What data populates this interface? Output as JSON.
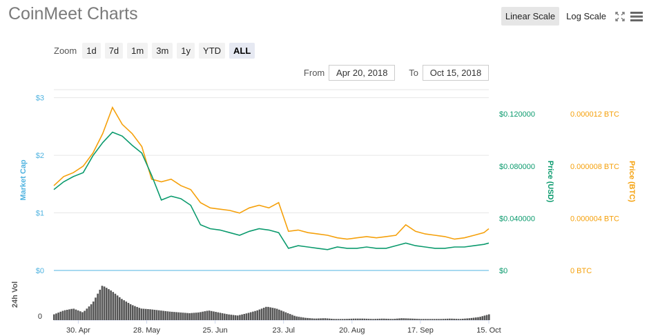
{
  "header": {
    "title": "CoinMeet Charts"
  },
  "toolbar": {
    "linear_scale": "Linear Scale",
    "log_scale": "Log Scale",
    "fullscreen_icon": "fullscreen-icon",
    "menu_icon": "hamburger-menu-icon"
  },
  "zoom": {
    "label": "Zoom",
    "buttons": [
      "1d",
      "7d",
      "1m",
      "3m",
      "1y",
      "YTD",
      "ALL"
    ],
    "active": "ALL"
  },
  "range": {
    "from_label": "From",
    "from_value": "Apr 20, 2018",
    "to_label": "To",
    "to_value": "Oct 15, 2018"
  },
  "colors": {
    "market_cap": "#4fb3e0",
    "price_usd": "#0a9a6d",
    "price_btc": "#f5a00a",
    "volume": "#555555"
  },
  "chart_data": {
    "type": "line",
    "title": "",
    "x": [
      "2018-04-20",
      "2018-04-24",
      "2018-04-28",
      "2018-05-02",
      "2018-05-06",
      "2018-05-10",
      "2018-05-14",
      "2018-05-18",
      "2018-05-22",
      "2018-05-26",
      "2018-05-30",
      "2018-06-03",
      "2018-06-07",
      "2018-06-11",
      "2018-06-15",
      "2018-06-19",
      "2018-06-23",
      "2018-06-27",
      "2018-07-01",
      "2018-07-05",
      "2018-07-09",
      "2018-07-13",
      "2018-07-17",
      "2018-07-21",
      "2018-07-25",
      "2018-07-29",
      "2018-08-02",
      "2018-08-06",
      "2018-08-10",
      "2018-08-14",
      "2018-08-18",
      "2018-08-22",
      "2018-08-26",
      "2018-08-30",
      "2018-09-03",
      "2018-09-07",
      "2018-09-11",
      "2018-09-15",
      "2018-09-19",
      "2018-09-23",
      "2018-09-27",
      "2018-10-01",
      "2018-10-05",
      "2018-10-09",
      "2018-10-13",
      "2018-10-15"
    ],
    "x_ticks": [
      "30. Apr",
      "28. May",
      "25. Jun",
      "23. Jul",
      "20. Aug",
      "17. Sep",
      "15. Oct"
    ],
    "y_axes": {
      "market_cap": {
        "label": "Market Cap",
        "ticks": [
          "$0",
          "$1",
          "$2",
          "$3"
        ],
        "range": [
          0,
          3.14
        ]
      },
      "price_usd": {
        "label": "Price (USD)",
        "ticks": [
          "$0",
          "$0.040000",
          "$0.080000",
          "$0.120000"
        ],
        "range": [
          0,
          0.1386
        ]
      },
      "price_btc": {
        "label": "Price (BTC)",
        "ticks": [
          "0 BTC",
          "0.000004 BTC",
          "0.000008 BTC",
          "0.000012 BTC"
        ],
        "range": [
          0,
          1.386e-05
        ]
      },
      "volume": {
        "label": "24h Vol",
        "ticks": [
          "0"
        ]
      }
    },
    "series": [
      {
        "name": "Price (USD)",
        "axis": "price_usd",
        "values": [
          0.062,
          0.068,
          0.072,
          0.075,
          0.088,
          0.098,
          0.106,
          0.103,
          0.096,
          0.09,
          0.073,
          0.054,
          0.057,
          0.055,
          0.05,
          0.035,
          0.032,
          0.031,
          0.029,
          0.027,
          0.03,
          0.032,
          0.031,
          0.029,
          0.017,
          0.019,
          0.018,
          0.017,
          0.016,
          0.018,
          0.017,
          0.017,
          0.018,
          0.017,
          0.017,
          0.019,
          0.021,
          0.019,
          0.018,
          0.017,
          0.017,
          0.018,
          0.018,
          0.019,
          0.02,
          0.021
        ]
      },
      {
        "name": "Price (BTC)",
        "axis": "price_btc",
        "values": [
          6.5e-06,
          7.2e-06,
          7.5e-06,
          8e-06,
          9e-06,
          1.05e-05,
          1.25e-05,
          1.12e-05,
          1.05e-05,
          9.5e-06,
          7e-06,
          6.8e-06,
          7e-06,
          6.5e-06,
          6.2e-06,
          5.2e-06,
          4.8e-06,
          4.7e-06,
          4.6e-06,
          4.4e-06,
          4.8e-06,
          5e-06,
          4.8e-06,
          5.2e-06,
          3e-06,
          3.1e-06,
          2.9e-06,
          2.8e-06,
          2.7e-06,
          2.5e-06,
          2.4e-06,
          2.5e-06,
          2.6e-06,
          2.5e-06,
          2.6e-06,
          2.7e-06,
          3.5e-06,
          3e-06,
          2.8e-06,
          2.7e-06,
          2.6e-06,
          2.4e-06,
          2.5e-06,
          2.7e-06,
          2.9e-06,
          3.2e-06
        ]
      },
      {
        "name": "24h Vol",
        "axis": "volume",
        "values": [
          0.15,
          0.25,
          0.3,
          0.2,
          0.45,
          0.9,
          0.75,
          0.55,
          0.4,
          0.3,
          0.28,
          0.25,
          0.22,
          0.2,
          0.18,
          0.2,
          0.25,
          0.2,
          0.15,
          0.12,
          0.18,
          0.25,
          0.35,
          0.3,
          0.2,
          0.1,
          0.06,
          0.04,
          0.05,
          0.03,
          0.03,
          0.04,
          0.04,
          0.03,
          0.04,
          0.03,
          0.05,
          0.04,
          0.03,
          0.03,
          0.03,
          0.04,
          0.03,
          0.05,
          0.08,
          0.15
        ]
      }
    ],
    "legend": "none",
    "grid": true
  }
}
